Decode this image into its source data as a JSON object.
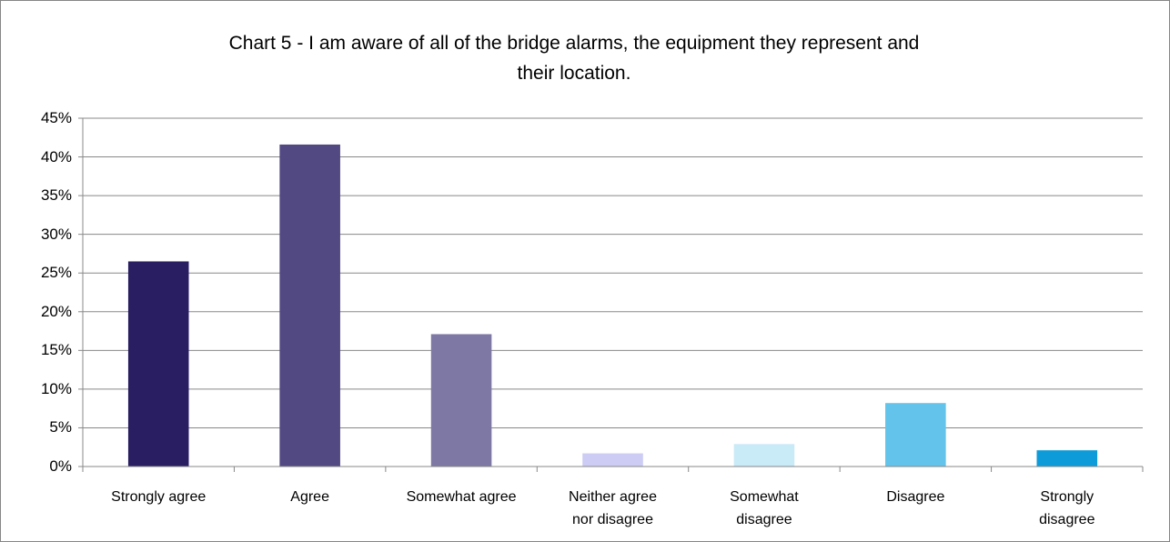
{
  "chart_data": {
    "type": "bar",
    "title": "Chart 5 - I am aware of all of the bridge alarms, the equipment they represent and\ntheir location.",
    "categories": [
      "Strongly agree",
      "Agree",
      "Somewhat agree",
      "Neither agree\nnor disagree",
      "Somewhat\ndisagree",
      "Disagree",
      "Strongly\ndisagree"
    ],
    "values": [
      26.5,
      41.6,
      17.1,
      1.7,
      2.9,
      8.2,
      2.1
    ],
    "colors": [
      "#2a1e63",
      "#524882",
      "#7e78a4",
      "#ccccf5",
      "#c9eaf7",
      "#63c3ea",
      "#0e9bd9"
    ],
    "ylim": [
      0,
      45
    ],
    "yticks": [
      {
        "value": 0,
        "label": "0%"
      },
      {
        "value": 5,
        "label": "5%"
      },
      {
        "value": 10,
        "label": "10%"
      },
      {
        "value": 15,
        "label": "15%"
      },
      {
        "value": 20,
        "label": "20%"
      },
      {
        "value": 25,
        "label": "25%"
      },
      {
        "value": 30,
        "label": "30%"
      },
      {
        "value": 35,
        "label": "35%"
      },
      {
        "value": 40,
        "label": "40%"
      },
      {
        "value": 45,
        "label": "45%"
      }
    ],
    "grid": true
  }
}
